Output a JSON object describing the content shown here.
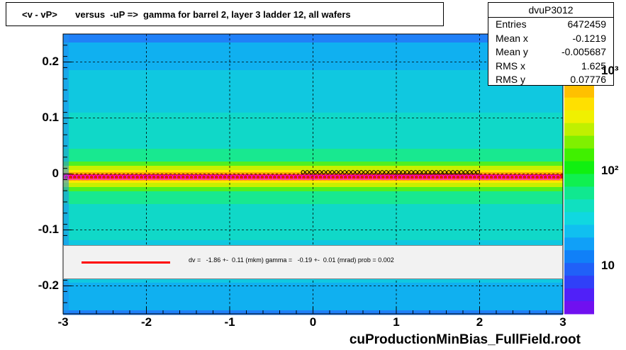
{
  "title": "<v - vP>       versus  -uP =>  gamma for barrel 2, layer 3 ladder 12, all wafers",
  "stats": {
    "name": "dvuP3012",
    "rows": [
      {
        "label": "Entries",
        "value": "6472459"
      },
      {
        "label": "Mean x",
        "value": "-0.1219"
      },
      {
        "label": "Mean y",
        "value": "-0.005687"
      },
      {
        "label": "RMS x",
        "value": "1.625"
      },
      {
        "label": "RMS y",
        "value": "0.07776"
      }
    ]
  },
  "legend": {
    "text": "dv =   -1.86 +-  0.11 (mkm) gamma =   -0.19 +-  0.01 (mrad) prob = 0.002",
    "line_color": "#ff0000"
  },
  "footer": "cuProductionMinBias_FullField.root",
  "chart_data": {
    "type": "heatmap",
    "xlim": [
      -3,
      3
    ],
    "ylim": [
      -0.25,
      0.25
    ],
    "x_ticks": [
      "-3",
      "-2",
      "-1",
      "0",
      "1",
      "2",
      "3"
    ],
    "y_ticks": [
      "-0.2",
      "-0.1",
      "0",
      "0.1",
      "0.2"
    ],
    "z_scale": "log",
    "z_ticks": [
      "10",
      "10²",
      "10³"
    ],
    "grid": true,
    "band_center_y": -0.005,
    "profile_red": {
      "x_start": -2.96,
      "x_end": 2.96,
      "step": 0.05,
      "y": -0.006
    },
    "profile_black": {
      "x_start": -0.12,
      "x_end": 2.0,
      "step": 0.05,
      "y": 0.003
    },
    "colors": {
      "band_core": "#ff2a00",
      "band_mid": "#ffd000",
      "background": "#10d8c8",
      "marker_red": "#ff00ff",
      "marker_black": "#000000"
    }
  }
}
